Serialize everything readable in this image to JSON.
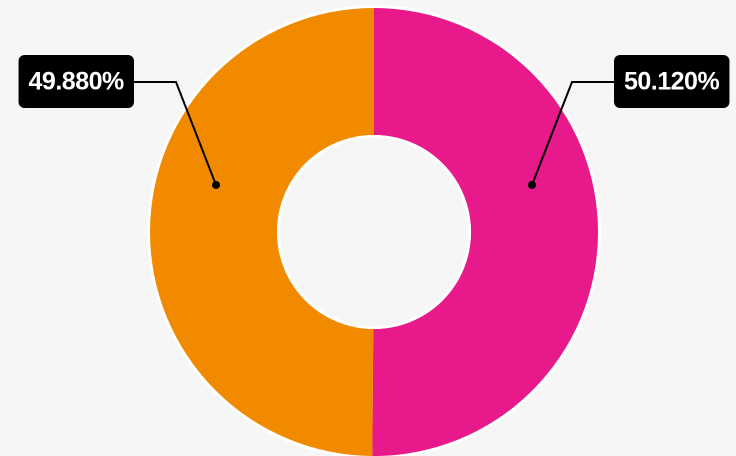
{
  "chart_data": {
    "type": "donut",
    "values": [
      50.12,
      49.88
    ],
    "value_labels": [
      "50.120%",
      "49.880%"
    ],
    "colors": [
      "#e8198b",
      "#f28a00"
    ]
  }
}
